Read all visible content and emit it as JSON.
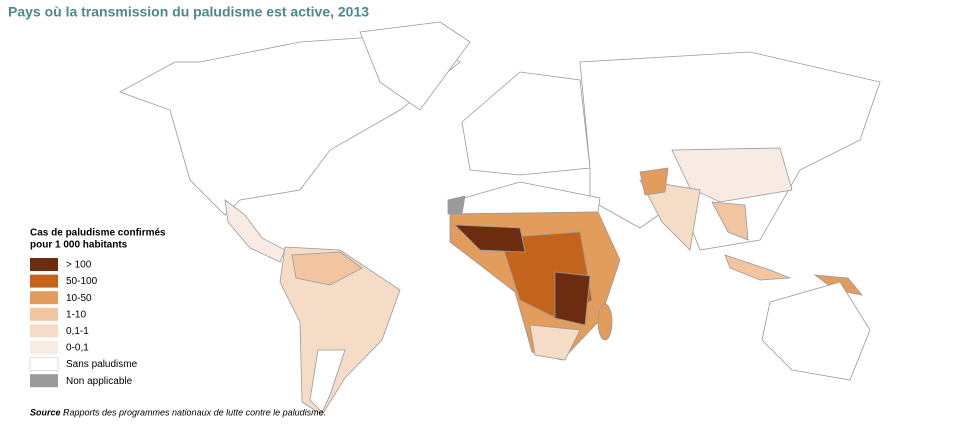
{
  "title": "Pays où la transmission du paludisme est active, 2013",
  "legend": {
    "title_line1": "Cas de paludisme confirmés",
    "title_line2": "pour 1 000 habitants",
    "items": [
      {
        "label": "> 100",
        "color": "#6b2c10"
      },
      {
        "label": "50-100",
        "color": "#c4641c"
      },
      {
        "label": "10-50",
        "color": "#e29c5c"
      },
      {
        "label": "1-10",
        "color": "#f2c4a0"
      },
      {
        "label": "0,1-1",
        "color": "#f5dcc6"
      },
      {
        "label": "0-0,1",
        "color": "#f8ebe4"
      },
      {
        "label": "Sans paludisme",
        "color": "#ffffff"
      },
      {
        "label": "Non applicable",
        "color": "#9a9a9a"
      }
    ]
  },
  "source": {
    "label": "Source :",
    "text": "Rapports des programmes nationaux de lutte contre le paludisme."
  }
}
